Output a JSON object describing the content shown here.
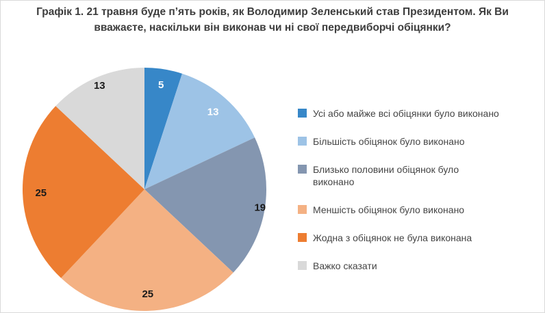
{
  "chart_data": {
    "type": "pie",
    "title": "Графік 1. 21 травня буде п’ять років, як Володимир Зеленський став Президентом. Як Ви вважаєте, наскільки він виконав чи ні свої передвиборчі обіцянки?",
    "labels": [
      "Усі або майже всі обіцянки було виконано",
      "Більшість обіцянок було виконано",
      "Близько половини обіцянок було виконано",
      "Меншість обіцянок було виконано",
      "Жодна з обіцянок не була виконана",
      "Важко сказати"
    ],
    "values": [
      5,
      13,
      19,
      25,
      25,
      13
    ],
    "colors": [
      "#3787c8",
      "#9dc3e6",
      "#8496b0",
      "#f4b183",
      "#ed7d31",
      "#d9d9d9"
    ],
    "label_colors": [
      "#ffffff",
      "#ffffff",
      "#1a1a1a",
      "#1a1a1a",
      "#1a1a1a",
      "#1a1a1a"
    ],
    "label_radius": [
      0.87,
      0.85,
      0.96,
      0.86,
      0.85,
      0.93
    ],
    "start_angle_deg": -90,
    "direction": "clockwise",
    "legend_position": "right",
    "title_color": "#3d3d3d"
  },
  "legend": {
    "items": [
      "Усі або майже всі обіцянки було виконано",
      "Більшість обіцянок було виконано",
      "Близько половини обіцянок було\nвиконано",
      "Меншість обіцянок було виконано",
      "Жодна з обіцянок не була виконана",
      "Важко сказати"
    ]
  }
}
